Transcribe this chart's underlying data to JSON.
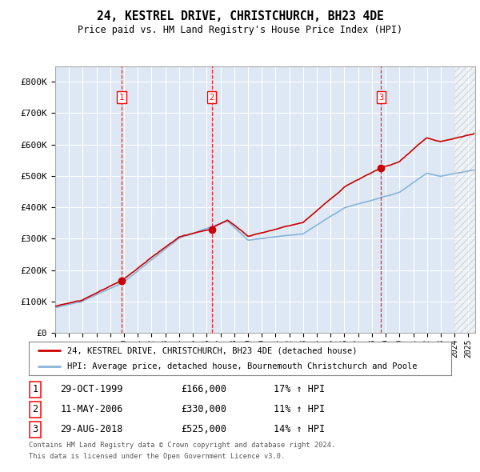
{
  "title": "24, KESTREL DRIVE, CHRISTCHURCH, BH23 4DE",
  "subtitle": "Price paid vs. HM Land Registry's House Price Index (HPI)",
  "legend_line1": "24, KESTREL DRIVE, CHRISTCHURCH, BH23 4DE (detached house)",
  "legend_line2": "HPI: Average price, detached house, Bournemouth Christchurch and Poole",
  "footnote1": "Contains HM Land Registry data © Crown copyright and database right 2024.",
  "footnote2": "This data is licensed under the Open Government Licence v3.0.",
  "sale_years": [
    1999.83,
    2006.36,
    2018.66
  ],
  "sale_values": [
    166000,
    330000,
    525000
  ],
  "sale_nums": [
    1,
    2,
    3
  ],
  "sale_dates": [
    "29-OCT-1999",
    "11-MAY-2006",
    "29-AUG-2018"
  ],
  "sale_prices": [
    "£166,000",
    "£330,000",
    "£525,000"
  ],
  "sale_hpi": [
    "17% ↑ HPI",
    "11% ↑ HPI",
    "14% ↑ HPI"
  ],
  "xmin": 1995.0,
  "xmax": 2025.5,
  "ymin": 0,
  "ymax": 850000,
  "yticks": [
    0,
    100000,
    200000,
    300000,
    400000,
    500000,
    600000,
    700000,
    800000
  ],
  "ytick_labels": [
    "£0",
    "£100K",
    "£200K",
    "£300K",
    "£400K",
    "£500K",
    "£600K",
    "£700K",
    "£800K"
  ],
  "background_color": "#ffffff",
  "plot_bg_color": "#dde8f4",
  "grid_color": "#ffffff",
  "hpi_color": "#89b4d9",
  "sale_color": "#cc0000",
  "hatch_start": 2024.0
}
